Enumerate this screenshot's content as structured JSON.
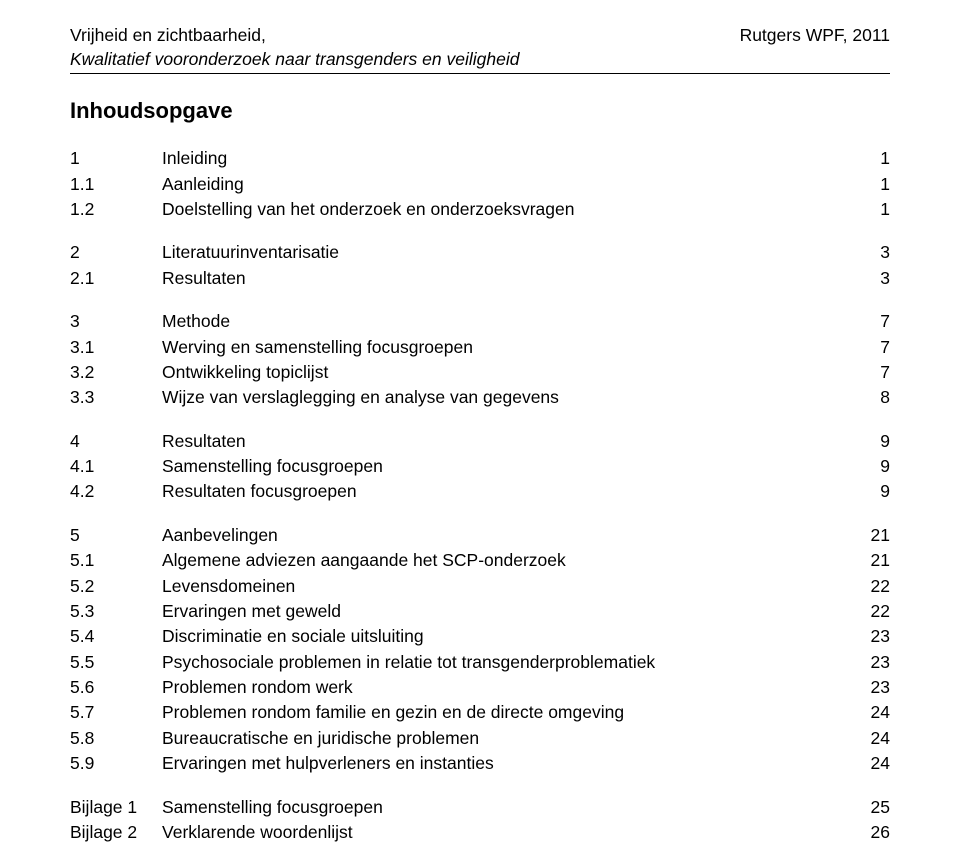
{
  "header": {
    "title_line1": "Vrijheid en zichtbaarheid,",
    "title_line2": "Kwalitatief vooronderzoek naar transgenders en veiligheid",
    "right": "Rutgers WPF, 2011"
  },
  "page_title": "Inhoudsopgave",
  "toc": [
    [
      {
        "num": "1",
        "label": "Inleiding",
        "page": "1"
      },
      {
        "num": "1.1",
        "label": "Aanleiding",
        "page": "1"
      },
      {
        "num": "1.2",
        "label": "Doelstelling van het onderzoek en onderzoeksvragen",
        "page": "1"
      }
    ],
    [
      {
        "num": "2",
        "label": "Literatuurinventarisatie",
        "page": "3"
      },
      {
        "num": "2.1",
        "label": "Resultaten",
        "page": "3"
      }
    ],
    [
      {
        "num": "3",
        "label": "Methode",
        "page": "7"
      },
      {
        "num": "3.1",
        "label": "Werving en samenstelling focusgroepen",
        "page": "7"
      },
      {
        "num": "3.2",
        "label": "Ontwikkeling topiclijst",
        "page": "7"
      },
      {
        "num": "3.3",
        "label": "Wijze van verslaglegging en analyse van gegevens",
        "page": "8"
      }
    ],
    [
      {
        "num": "4",
        "label": "Resultaten",
        "page": "9"
      },
      {
        "num": "4.1",
        "label": "Samenstelling focusgroepen",
        "page": "9"
      },
      {
        "num": "4.2",
        "label": "Resultaten focusgroepen",
        "page": "9"
      }
    ],
    [
      {
        "num": "5",
        "label": "Aanbevelingen",
        "page": "21"
      },
      {
        "num": "5.1",
        "label": "Algemene adviezen aangaande het SCP-onderzoek",
        "page": "21"
      },
      {
        "num": "5.2",
        "label": "Levensdomeinen",
        "page": "22"
      },
      {
        "num": "5.3",
        "label": "Ervaringen met geweld",
        "page": "22"
      },
      {
        "num": "5.4",
        "label": "Discriminatie en sociale uitsluiting",
        "page": "23"
      },
      {
        "num": "5.5",
        "label": "Psychosociale problemen in relatie tot transgenderproblematiek",
        "page": "23"
      },
      {
        "num": "5.6",
        "label": "Problemen rondom werk",
        "page": "23"
      },
      {
        "num": "5.7",
        "label": "Problemen rondom familie en gezin en de directe omgeving",
        "page": "24"
      },
      {
        "num": "5.8",
        "label": "Bureaucratische en juridische problemen",
        "page": "24"
      },
      {
        "num": "5.9",
        "label": "Ervaringen met hulpverleners en instanties",
        "page": "24"
      }
    ]
  ],
  "appendices": [
    {
      "num": "Bijlage 1",
      "label": "Samenstelling focusgroepen",
      "page": "25"
    },
    {
      "num": "Bijlage 2",
      "label": "Verklarende woordenlijst",
      "page": "26"
    }
  ]
}
